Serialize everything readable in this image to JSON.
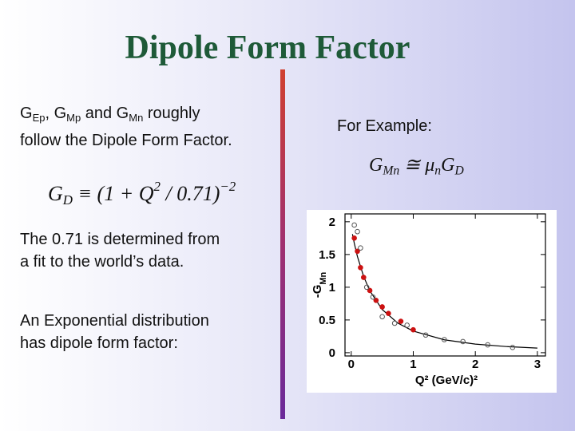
{
  "title": "Dipole Form Factor",
  "left": {
    "intro": [
      [
        {
          "text": "G"
        },
        {
          "text": "Ep",
          "style": "sub"
        },
        {
          "text": ", G"
        },
        {
          "text": "Mp",
          "style": "sub"
        },
        {
          "text": " and G"
        },
        {
          "text": "Mn",
          "style": "sub"
        },
        {
          "text": " roughly"
        }
      ],
      [
        {
          "text": "follow the Dipole Form Factor."
        }
      ]
    ],
    "equation": [
      {
        "text": "G"
      },
      {
        "text": "D",
        "style": "sub"
      },
      {
        "text": " ≡ (1 + Q"
      },
      {
        "text": "2",
        "style": "sup"
      },
      {
        "text": " / 0.71)"
      },
      {
        "text": "−2",
        "style": "sup"
      }
    ],
    "note": [
      "The 0.71 is determined from",
      "a fit to the world’s data."
    ],
    "exponential": [
      "An Exponential distribution",
      "has dipole form factor:"
    ]
  },
  "right": {
    "label": "For Example:",
    "equation": [
      {
        "text": "G"
      },
      {
        "text": "Mn",
        "style": "sub"
      },
      {
        "text": " ≅ μ"
      },
      {
        "text": "n",
        "style": "sub"
      },
      {
        "text": "G"
      },
      {
        "text": "D",
        "style": "sub"
      }
    ]
  },
  "chart_data": {
    "type": "scatter",
    "xlabel": "Q² (GeV/c)²",
    "ylabel": [
      {
        "text": "-G"
      },
      {
        "text": "Mn",
        "style": "sub"
      }
    ],
    "xlim": [
      -0.1,
      3.13
    ],
    "ylim": [
      -0.05,
      2.12
    ],
    "xticks": [
      0,
      1,
      2,
      3
    ],
    "yticks": [
      0,
      0.5,
      1,
      1.5,
      2
    ],
    "series": [
      {
        "kind": "line",
        "color": "#000000",
        "x": [
          0.02,
          0.05,
          0.1,
          0.2,
          0.3,
          0.5,
          0.75,
          1,
          1.5,
          2,
          2.5,
          3
        ],
        "values": [
          1.81,
          1.67,
          1.47,
          1.165,
          0.945,
          0.659,
          0.453,
          0.33,
          0.197,
          0.131,
          0.094,
          0.07
        ]
      },
      {
        "kind": "filled",
        "color": "#cc1111",
        "x": [
          0.05,
          0.1,
          0.15,
          0.2,
          0.3,
          0.4,
          0.5,
          0.6,
          0.8,
          1.0
        ],
        "values": [
          1.75,
          1.55,
          1.3,
          1.15,
          0.95,
          0.8,
          0.7,
          0.6,
          0.48,
          0.35
        ]
      },
      {
        "kind": "open",
        "color": "#555555",
        "x": [
          0.05,
          0.1,
          0.15,
          0.25,
          0.35,
          0.5,
          0.7,
          0.9,
          1.2,
          1.5,
          1.8,
          2.2,
          2.6
        ],
        "values": [
          1.95,
          1.85,
          1.6,
          1.0,
          0.85,
          0.55,
          0.45,
          0.42,
          0.27,
          0.2,
          0.17,
          0.12,
          0.08
        ]
      }
    ]
  }
}
